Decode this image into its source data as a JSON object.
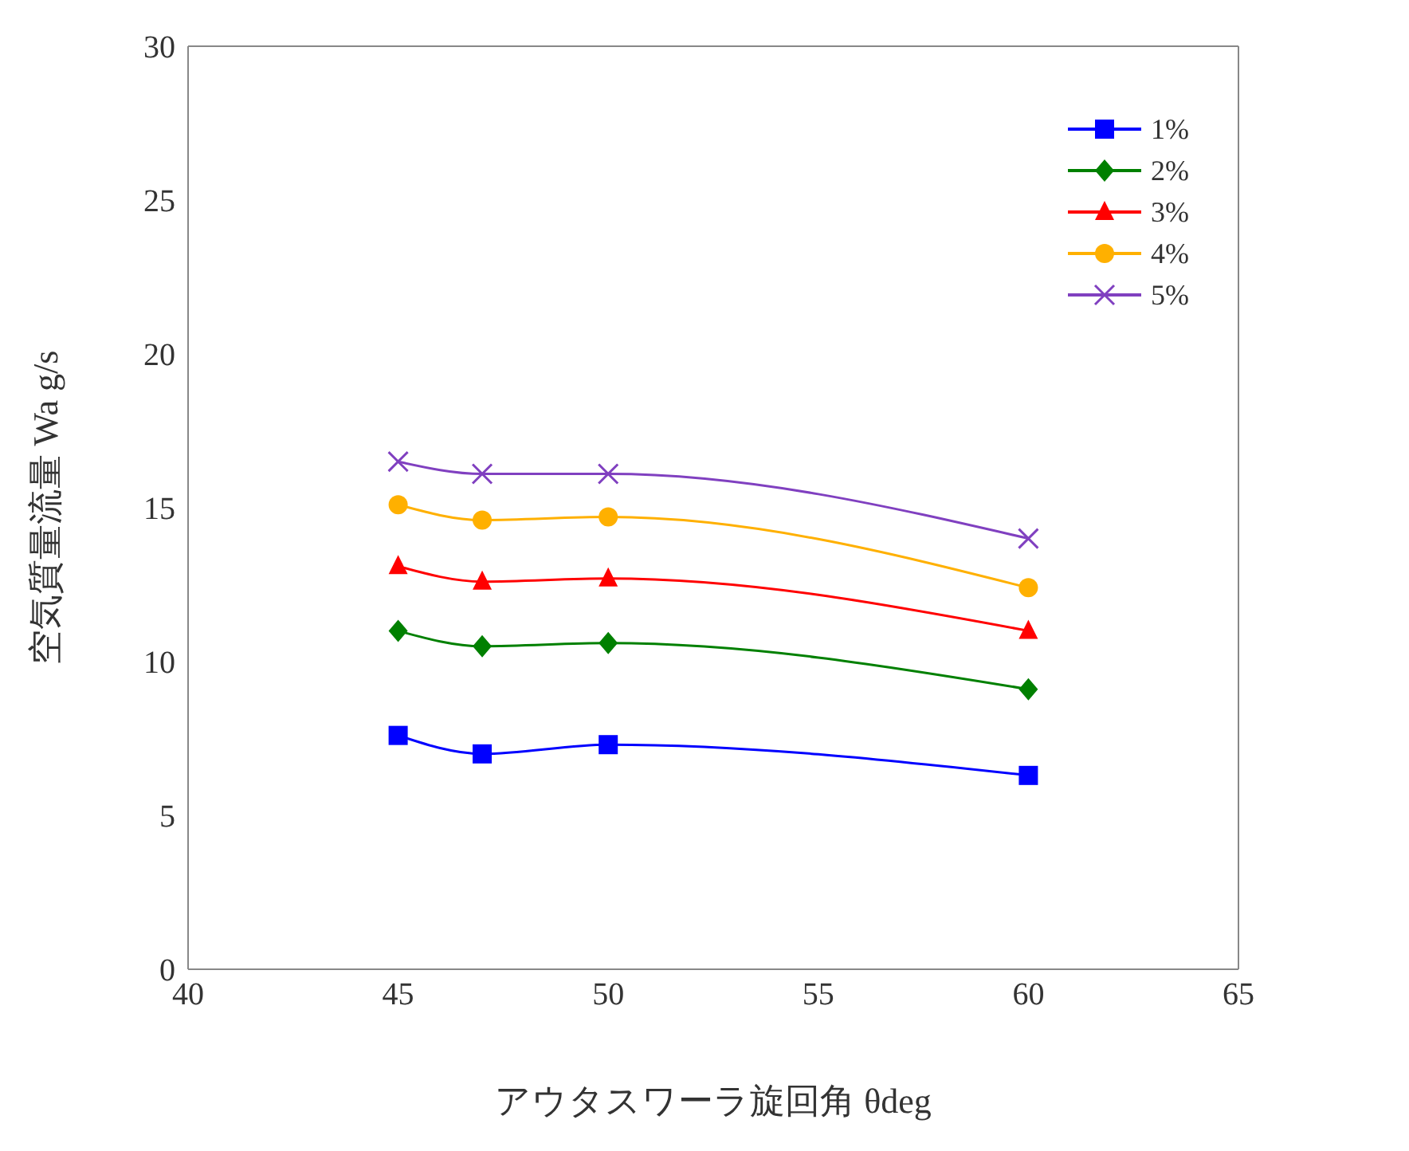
{
  "chart_data": {
    "type": "line",
    "xlabel": "アウタスワーラ旋回角 θdeg",
    "ylabel": "空気質量流量 Wa g/s",
    "x": [
      45,
      47,
      50,
      60
    ],
    "series": [
      {
        "name": "1%",
        "color": "#0000ff",
        "marker": "square",
        "values": [
          7.6,
          7.0,
          7.3,
          6.3
        ]
      },
      {
        "name": "2%",
        "color": "#008000",
        "marker": "diamond",
        "values": [
          11.0,
          10.5,
          10.6,
          9.1
        ]
      },
      {
        "name": "3%",
        "color": "#ff0000",
        "marker": "triangle",
        "values": [
          13.1,
          12.6,
          12.7,
          11.0
        ]
      },
      {
        "name": "4%",
        "color": "#ffb000",
        "marker": "circle",
        "values": [
          15.1,
          14.6,
          14.7,
          12.4
        ]
      },
      {
        "name": "5%",
        "color": "#8040c0",
        "marker": "cross",
        "values": [
          16.5,
          16.1,
          16.1,
          14.0
        ]
      }
    ],
    "xlim": [
      40,
      65
    ],
    "xticks": [
      40,
      45,
      50,
      55,
      60,
      65
    ],
    "ylim": [
      0,
      30
    ],
    "yticks": [
      0,
      5,
      10,
      15,
      20,
      25,
      30
    ],
    "grid": false,
    "legend": "top right",
    "line_style": "solid"
  }
}
